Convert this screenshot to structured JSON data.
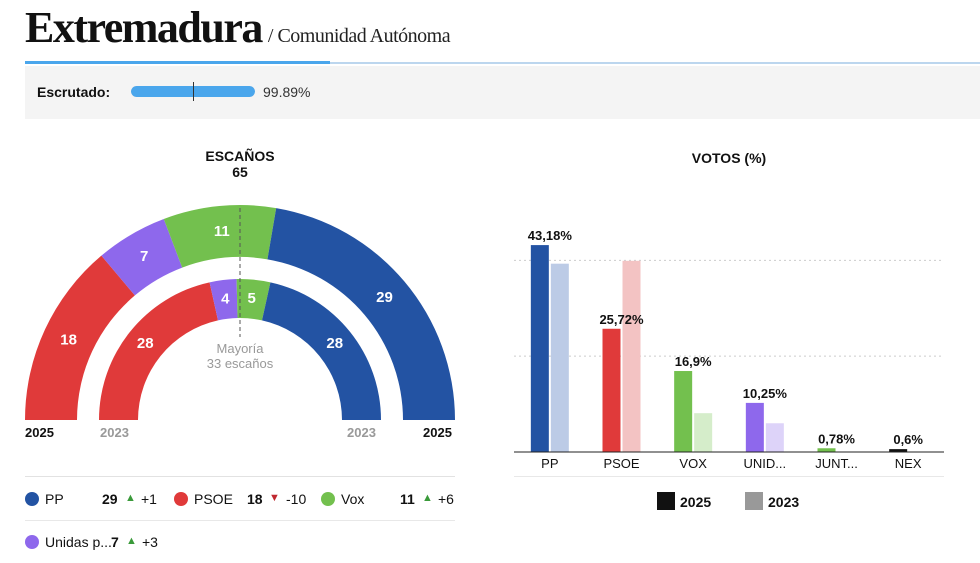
{
  "header": {
    "title": "Extremadura",
    "subtitle": "/ Comunidad Autónoma"
  },
  "scrutiny": {
    "label": "Escrutado:",
    "percent": 99.89,
    "value_text": "99.89%"
  },
  "chart_data": [
    {
      "type": "hemicycle",
      "title": "ESCAÑOS",
      "total_seats": "65",
      "majority_label": "Mayoría",
      "majority_seats_label": "33 escaños",
      "year_left_2025": "2025",
      "year_left_2023": "2023",
      "year_right_2023": "2023",
      "year_right_2025": "2025",
      "series": [
        {
          "name": "2025",
          "parties": [
            {
              "party": "PSOE",
              "seats": 18,
              "label": "18",
              "color": "#e03a3a"
            },
            {
              "party": "Unidas por Extremadura",
              "seats": 7,
              "label": "7",
              "color": "#8e68ec"
            },
            {
              "party": "Vox",
              "seats": 11,
              "label": "11",
              "color": "#73c04e"
            },
            {
              "party": "PP",
              "seats": 29,
              "label": "29",
              "color": "#2353a3"
            }
          ]
        },
        {
          "name": "2023",
          "parties": [
            {
              "party": "PSOE",
              "seats": 28,
              "label": "28",
              "color": "#e03a3a"
            },
            {
              "party": "Unidas por Extremadura",
              "seats": 4,
              "label": "4",
              "color": "#8e68ec"
            },
            {
              "party": "Vox",
              "seats": 5,
              "label": "5",
              "color": "#73c04e"
            },
            {
              "party": "PP",
              "seats": 28,
              "label": "28",
              "color": "#2353a3"
            }
          ]
        }
      ]
    },
    {
      "type": "bar",
      "title": "VOTOS (%)",
      "categories": [
        "PP",
        "PSOE",
        "VOX",
        "UNID...",
        "JUNT...",
        "NEX"
      ],
      "series": [
        {
          "name": "2025",
          "values": [
            43.18,
            25.72,
            16.9,
            10.25,
            0.78,
            0.6
          ],
          "labels": [
            "43,18%",
            "25,72%",
            "16,9%",
            "10,25%",
            "0,78%",
            "0,6%"
          ]
        },
        {
          "name": "2023",
          "values": [
            39.3,
            39.9,
            8.1,
            6.0,
            0,
            0
          ]
        }
      ],
      "colors_2025": [
        "#2353a3",
        "#e03a3a",
        "#73c04e",
        "#8e68ec",
        "#73c04e",
        "#111111"
      ],
      "colors_2023": [
        "#bccbe6",
        "#f3c3c3",
        "#d5edca",
        "#ddd3f9",
        "#d5edca",
        "#cccccc"
      ],
      "ylim": [
        0,
        48
      ],
      "gridlines": [
        20,
        40
      ],
      "legend": [
        {
          "label": "2025",
          "color": "#111111"
        },
        {
          "label": "2023",
          "color": "#999999"
        }
      ]
    }
  ],
  "party_legend": [
    {
      "name": "PP",
      "seats": "29",
      "direction": "up",
      "arrow": "▲",
      "diff": "+1",
      "color": "#2353a3"
    },
    {
      "name": "PSOE",
      "seats": "18",
      "direction": "down",
      "arrow": "▼",
      "diff": "-10",
      "color": "#e03a3a"
    },
    {
      "name": "Vox",
      "seats": "11",
      "direction": "up",
      "arrow": "▲",
      "diff": "+6",
      "color": "#73c04e"
    },
    {
      "name": "Unidas p...",
      "seats": "7",
      "direction": "up",
      "arrow": "▲",
      "diff": "+3",
      "color": "#8e68ec"
    }
  ],
  "colors": {
    "accent": "#4aa6ec",
    "up": "#3a9a3a",
    "down": "#c0282f"
  }
}
